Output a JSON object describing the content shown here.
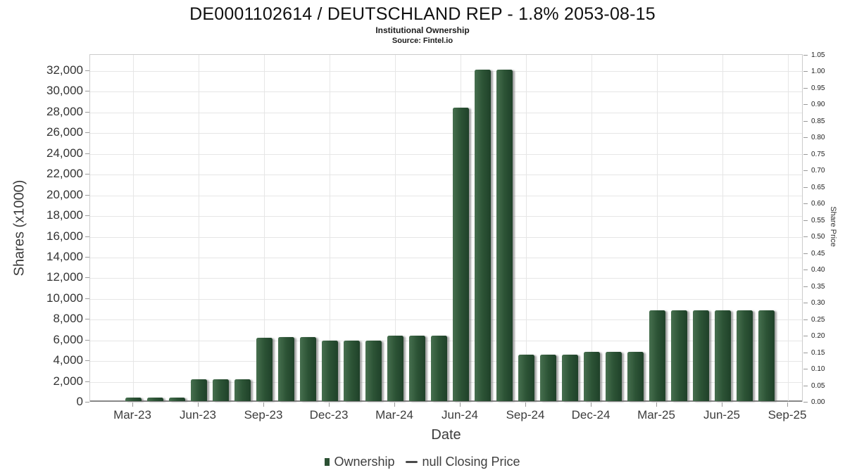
{
  "header": {
    "title": "DE0001102614 / DEUTSCHLAND REP - 1.8% 2053-08-15",
    "subtitle": "Institutional Ownership",
    "source": "Source: Fintel.io"
  },
  "chart_data": {
    "type": "bar",
    "title": "DE0001102614 / DEUTSCHLAND REP - 1.8% 2053-08-15",
    "subtitle": "Institutional Ownership",
    "source": "Source: Fintel.io",
    "categories": [
      "Mar-23",
      "Apr-23",
      "May-23",
      "Jun-23",
      "Jul-23",
      "Aug-23",
      "Sep-23",
      "Oct-23",
      "Nov-23",
      "Dec-23",
      "Jan-24",
      "Feb-24",
      "Mar-24",
      "Apr-24",
      "May-24",
      "Jun-24",
      "Jul-24",
      "Aug-24",
      "Sep-24",
      "Oct-24",
      "Nov-24",
      "Dec-24",
      "Jan-25",
      "Feb-25",
      "Mar-25",
      "Apr-25",
      "May-25",
      "Jun-25",
      "Jul-25",
      "Aug-25"
    ],
    "series": [
      {
        "name": "Ownership",
        "values": [
          350,
          350,
          350,
          2100,
          2100,
          2100,
          6100,
          6150,
          6150,
          5850,
          5850,
          5850,
          6300,
          6300,
          6300,
          28300,
          32000,
          32000,
          4500,
          4500,
          4500,
          4750,
          4750,
          4750,
          8760,
          8760,
          8760,
          8760,
          8760,
          8760
        ]
      },
      {
        "name": "null Closing Price",
        "values": []
      }
    ],
    "xlabel": "Date",
    "ylabel_left": "Shares (x1000)",
    "ylabel_right": "Share Price",
    "x_tick_labels": [
      "Mar-23",
      "Jun-23",
      "Sep-23",
      "Dec-23",
      "Mar-24",
      "Jun-24",
      "Sep-24",
      "Dec-24",
      "Mar-25",
      "Jun-25",
      "Sep-25"
    ],
    "ylim_left": [
      0,
      32000
    ],
    "ytick_step_left": 2000,
    "ylim_right": [
      0,
      1.05
    ],
    "ytick_step_right": 0.05,
    "grid": true,
    "legend_position": "bottom",
    "legend": [
      {
        "marker": "square",
        "label": "Ownership",
        "color": "#2c5134"
      },
      {
        "marker": "dash",
        "label": "null Closing Price",
        "color": "#4a4a4a"
      }
    ]
  },
  "colors": {
    "bar_light": "#47704f",
    "bar_mid": "#2c5335",
    "bar_dark": "#1f4129",
    "grid": "#e6e6e6",
    "plot_border": "#cccccc",
    "axis_line": "#878787",
    "tick_text": "#333333"
  }
}
